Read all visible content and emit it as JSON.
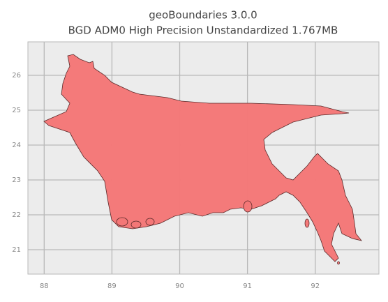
{
  "chart_data": {
    "type": "map",
    "title": "geoBoundaries 3.0.0",
    "subtitle": "BGD ADM0 High Precision Unstandardized 1.767MB",
    "xlim": [
      87.76,
      92.94
    ],
    "ylim": [
      20.3,
      26.96
    ],
    "xticks": [
      88,
      89,
      90,
      91,
      92
    ],
    "yticks": [
      21,
      22,
      23,
      24,
      25,
      26
    ],
    "grid": true,
    "color": "#f47777"
  }
}
